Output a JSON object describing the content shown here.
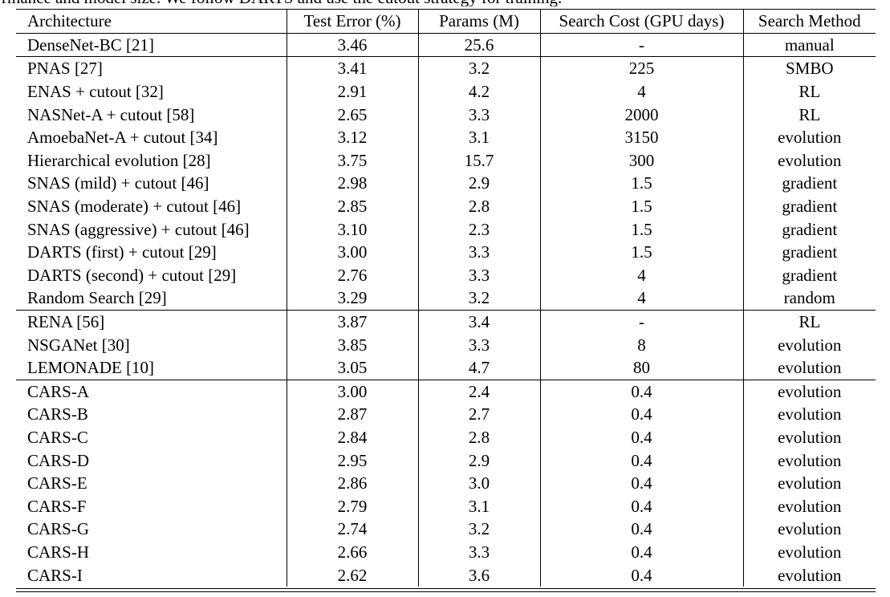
{
  "caption_fragment": "rmance and model size. We follow DARTS and use the cutout strategy for training.",
  "table": {
    "headers": [
      "Architecture",
      "Test Error (%)",
      "Params (M)",
      "Search Cost (GPU days)",
      "Search Method"
    ],
    "groups": [
      [
        [
          "DenseNet-BC [21]",
          "3.46",
          "25.6",
          "-",
          "manual"
        ]
      ],
      [
        [
          "PNAS [27]",
          "3.41",
          "3.2",
          "225",
          "SMBO"
        ],
        [
          "ENAS + cutout [32]",
          "2.91",
          "4.2",
          "4",
          "RL"
        ],
        [
          "NASNet-A + cutout [58]",
          "2.65",
          "3.3",
          "2000",
          "RL"
        ],
        [
          "AmoebaNet-A + cutout [34]",
          "3.12",
          "3.1",
          "3150",
          "evolution"
        ],
        [
          "Hierarchical evolution [28]",
          "3.75",
          "15.7",
          "300",
          "evolution"
        ],
        [
          "SNAS (mild) + cutout [46]",
          "2.98",
          "2.9",
          "1.5",
          "gradient"
        ],
        [
          "SNAS (moderate) + cutout [46]",
          "2.85",
          "2.8",
          "1.5",
          "gradient"
        ],
        [
          "SNAS (aggressive) + cutout [46]",
          "3.10",
          "2.3",
          "1.5",
          "gradient"
        ],
        [
          "DARTS (first) + cutout [29]",
          "3.00",
          "3.3",
          "1.5",
          "gradient"
        ],
        [
          "DARTS (second) + cutout [29]",
          "2.76",
          "3.3",
          "4",
          "gradient"
        ],
        [
          "Random Search [29]",
          "3.29",
          "3.2",
          "4",
          "random"
        ]
      ],
      [
        [
          "RENA [56]",
          "3.87",
          "3.4",
          "-",
          "RL"
        ],
        [
          "NSGANet [30]",
          "3.85",
          "3.3",
          "8",
          "evolution"
        ],
        [
          "LEMONADE [10]",
          "3.05",
          "4.7",
          "80",
          "evolution"
        ]
      ],
      [
        [
          "CARS-A",
          "3.00",
          "2.4",
          "0.4",
          "evolution"
        ],
        [
          "CARS-B",
          "2.87",
          "2.7",
          "0.4",
          "evolution"
        ],
        [
          "CARS-C",
          "2.84",
          "2.8",
          "0.4",
          "evolution"
        ],
        [
          "CARS-D",
          "2.95",
          "2.9",
          "0.4",
          "evolution"
        ],
        [
          "CARS-E",
          "2.86",
          "3.0",
          "0.4",
          "evolution"
        ],
        [
          "CARS-F",
          "2.79",
          "3.1",
          "0.4",
          "evolution"
        ],
        [
          "CARS-G",
          "2.74",
          "3.2",
          "0.4",
          "evolution"
        ],
        [
          "CARS-H",
          "2.66",
          "3.3",
          "0.4",
          "evolution"
        ],
        [
          "CARS-I",
          "2.62",
          "3.6",
          "0.4",
          "evolution"
        ]
      ]
    ]
  }
}
